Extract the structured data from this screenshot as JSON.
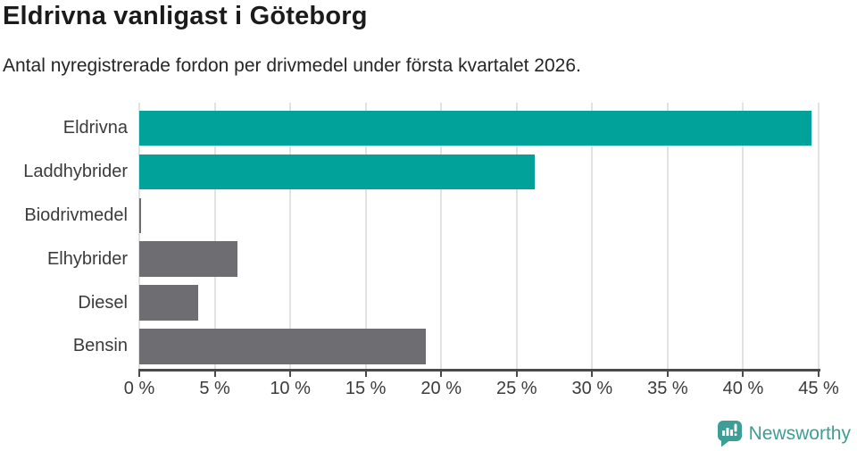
{
  "chart_data": {
    "type": "bar",
    "orientation": "horizontal",
    "title": "Eldrivna vanligast i Göteborg",
    "subtitle": "Antal nyregistrerade fordon per drivmedel under första kvartalet 2026.",
    "categories": [
      "Eldrivna",
      "Laddhybrider",
      "Biodrivmedel",
      "Elhybrider",
      "Diesel",
      "Bensin"
    ],
    "values": [
      44.5,
      26.2,
      0.1,
      6.5,
      3.9,
      19.0
    ],
    "unit": "%",
    "xlim": [
      0,
      45
    ],
    "x_ticks": [
      0,
      5,
      10,
      15,
      20,
      25,
      30,
      35,
      40,
      45
    ],
    "x_tick_labels": [
      "0 %",
      "5 %",
      "10 %",
      "15 %",
      "20 %",
      "25 %",
      "30 %",
      "35 %",
      "40 %",
      "45 %"
    ],
    "bar_colors": [
      "#00a29a",
      "#00a29a",
      "#6d6d72",
      "#6d6d72",
      "#6d6d72",
      "#6d6d72"
    ],
    "grid": true,
    "legend": false
  },
  "theme": {
    "accent_teal": "#00a29a",
    "bar_gray": "#6d6d72",
    "gridline": "#e2e2e2",
    "axis": "#4a4a4a",
    "label_text": "#3b3b3b",
    "title_text": "#1b1b1b",
    "logo_teal": "#3e9d97"
  },
  "footer": {
    "brand_name": "Newsworthy",
    "logo_icon": "newsworthy-speech-bubble-bar-chart-icon"
  }
}
